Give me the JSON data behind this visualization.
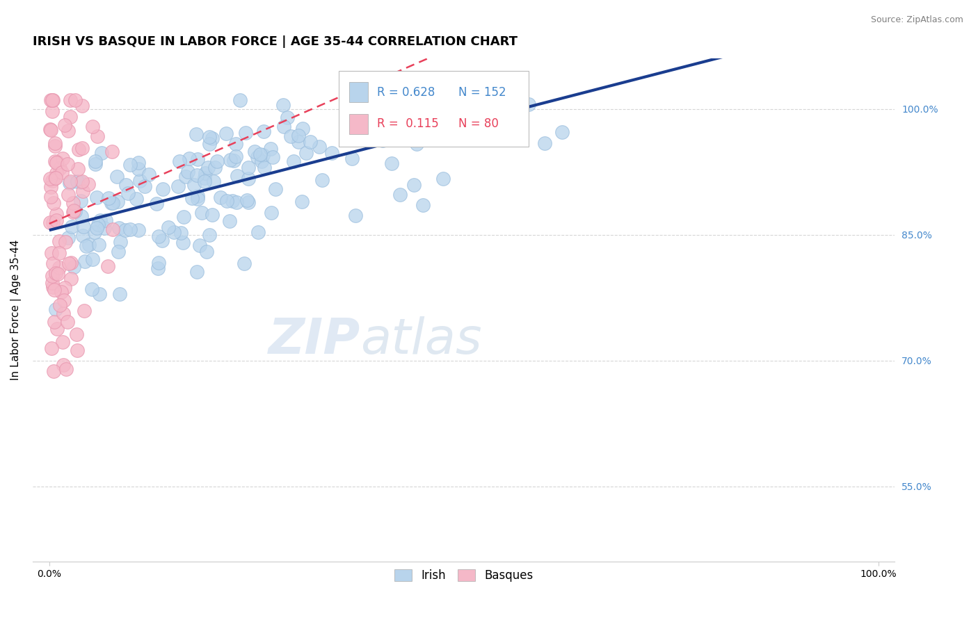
{
  "title": "IRISH VS BASQUE IN LABOR FORCE | AGE 35-44 CORRELATION CHART",
  "source_text": "Source: ZipAtlas.com",
  "ylabel": "In Labor Force | Age 35-44",
  "xlim": [
    -0.02,
    1.02
  ],
  "ylim": [
    0.46,
    1.06
  ],
  "xtick_positions": [
    0.0,
    1.0
  ],
  "xtick_labels": [
    "0.0%",
    "100.0%"
  ],
  "ytick_positions": [
    0.55,
    0.7,
    0.85,
    1.0
  ],
  "ytick_labels": [
    "55.0%",
    "70.0%",
    "85.0%",
    "100.0%"
  ],
  "irish_R": 0.628,
  "irish_N": 152,
  "basque_R": 0.115,
  "basque_N": 80,
  "irish_marker_color": "#b8d4ec",
  "irish_marker_edge": "#9bbedd",
  "irish_line_color": "#1a3d8f",
  "basque_marker_color": "#f5b8c8",
  "basque_marker_edge": "#e898b0",
  "basque_line_color": "#e8405a",
  "legend_irish_label": "Irish",
  "legend_basque_label": "Basques",
  "watermark_zip": "ZIP",
  "watermark_atlas": "atlas",
  "background_color": "#ffffff",
  "grid_color": "#cccccc",
  "title_fontsize": 13,
  "axis_label_fontsize": 11,
  "tick_fontsize": 10,
  "ytick_color": "#4488cc",
  "legend_r_irish_color": "#4488cc",
  "legend_r_basque_color": "#e8405a"
}
